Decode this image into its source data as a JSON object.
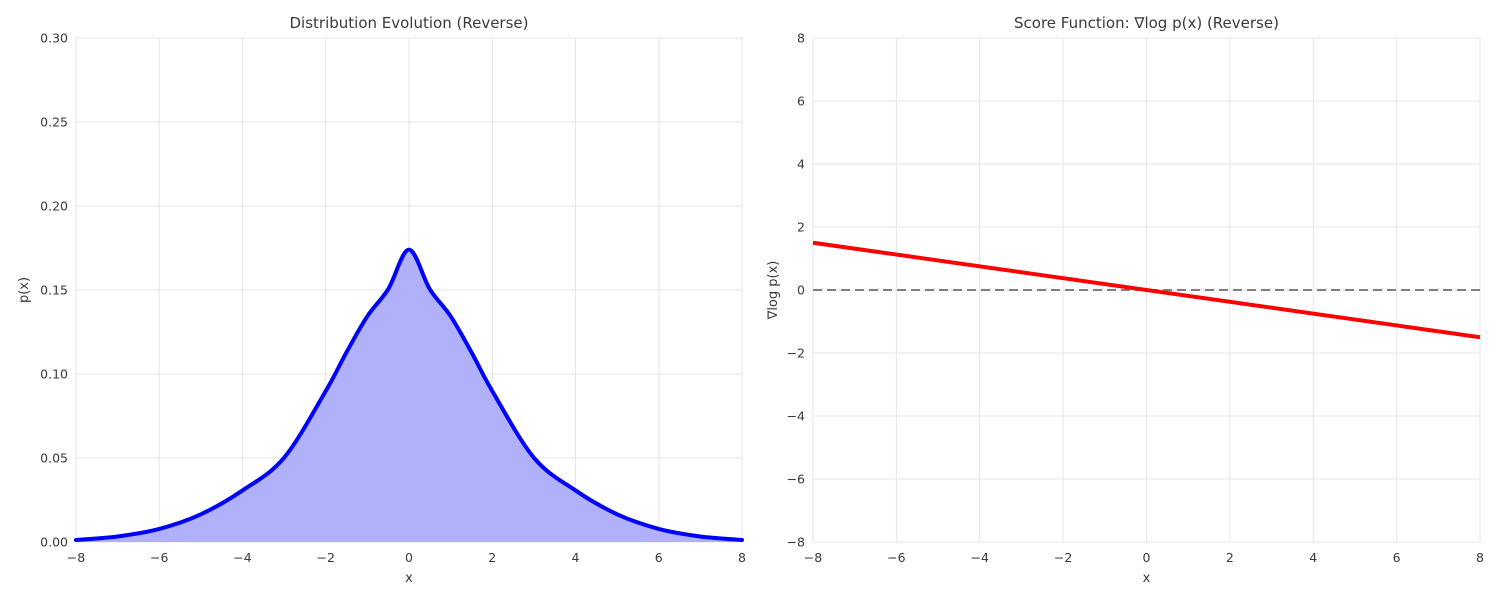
{
  "colors": {
    "density_line": "#0000ff",
    "density_fill": "#b0b0fb",
    "score_line": "#ff0000",
    "zero_line": "#7f7f7f"
  },
  "chart_data": [
    {
      "type": "area",
      "title": "Distribution Evolution (Reverse)",
      "xlabel": "x",
      "ylabel": "p(x)",
      "xlim": [
        -8,
        8
      ],
      "ylim": [
        0,
        0.3
      ],
      "xticks": [
        -8,
        -6,
        -4,
        -2,
        0,
        2,
        4,
        6,
        8
      ],
      "xtick_labels": [
        "−8",
        "−6",
        "−4",
        "−2",
        "0",
        "2",
        "4",
        "6",
        "8"
      ],
      "yticks": [
        0,
        0.05,
        0.1,
        0.15,
        0.2,
        0.25,
        0.3
      ],
      "ytick_labels": [
        "0.00",
        "0.05",
        "0.10",
        "0.15",
        "0.20",
        "0.25",
        "0.30"
      ],
      "grid": true,
      "series": [
        {
          "x": [
            -8,
            -7,
            -6,
            -5,
            -4,
            -3,
            -2,
            -1.5,
            -1,
            -0.5,
            0,
            0.5,
            1,
            1.5,
            2,
            3,
            4,
            5,
            6,
            7,
            8
          ],
          "y": [
            0.0012,
            0.0033,
            0.0078,
            0.0165,
            0.0307,
            0.0502,
            0.0899,
            0.113,
            0.1344,
            0.1505,
            0.174,
            0.1505,
            0.1344,
            0.113,
            0.0899,
            0.0502,
            0.0307,
            0.0165,
            0.0078,
            0.0033,
            0.0012
          ]
        }
      ]
    },
    {
      "type": "line",
      "title": "Score Function: ∇log p(x) (Reverse)",
      "xlabel": "x",
      "ylabel": "∇log p(x)",
      "xlim": [
        -8,
        8
      ],
      "ylim": [
        -8,
        8
      ],
      "xticks": [
        -8,
        -6,
        -4,
        -2,
        0,
        2,
        4,
        6,
        8
      ],
      "xtick_labels": [
        "−8",
        "−6",
        "−4",
        "−2",
        "0",
        "2",
        "4",
        "6",
        "8"
      ],
      "yticks": [
        -8,
        -6,
        -4,
        -2,
        0,
        2,
        4,
        6,
        8
      ],
      "ytick_labels": [
        "−8",
        "−6",
        "−4",
        "−2",
        "0",
        "2",
        "4",
        "6",
        "8"
      ],
      "grid": true,
      "series": [
        {
          "x": [
            -8,
            8
          ],
          "y": [
            1.5,
            -1.5
          ]
        }
      ],
      "reference_line": {
        "y": 0,
        "style": "dashed"
      }
    }
  ]
}
